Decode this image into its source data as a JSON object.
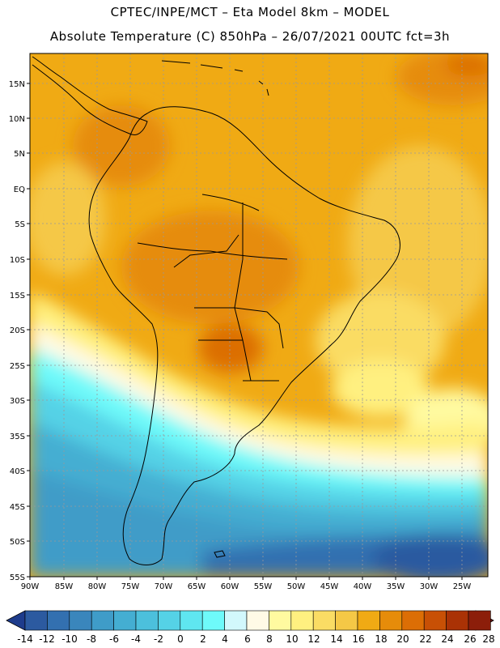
{
  "title_line1": "CPTEC/INPE/MCT –  Eta Model 8km – MODEL",
  "title_line2": "Absolute Temperature (C) 850hPa – 26/07/2021 00UTC fct=3h",
  "lat_ticks": [
    "15N",
    "10N",
    "5N",
    "EQ",
    "5S",
    "10S",
    "15S",
    "20S",
    "25S",
    "30S",
    "35S",
    "40S",
    "45S",
    "50S",
    "55S"
  ],
  "lon_ticks": [
    "90W",
    "85W",
    "80W",
    "75W",
    "70W",
    "65W",
    "60W",
    "55W",
    "50W",
    "45W",
    "40W",
    "35W",
    "30W",
    "25W"
  ],
  "colorbar": {
    "labels": [
      "-14",
      "-12",
      "-10",
      "-8",
      "-6",
      "-4",
      "-2",
      "0",
      "2",
      "4",
      "6",
      "8",
      "10",
      "12",
      "14",
      "16",
      "18",
      "20",
      "22",
      "24",
      "26",
      "28"
    ],
    "colors": [
      "#1e3c8c",
      "#2c5aa0",
      "#3370b0",
      "#3a86bc",
      "#3f9cc8",
      "#44aed2",
      "#4cc0dc",
      "#55d2e6",
      "#5fe6f0",
      "#6efafa",
      "#d2f8fc",
      "#fffae6",
      "#fffaa0",
      "#fff080",
      "#fadc64",
      "#f5c846",
      "#f0aa14",
      "#e68c0a",
      "#dc6e05",
      "#c85005",
      "#aa3205",
      "#8c1e0a",
      "#7a1010"
    ]
  }
}
